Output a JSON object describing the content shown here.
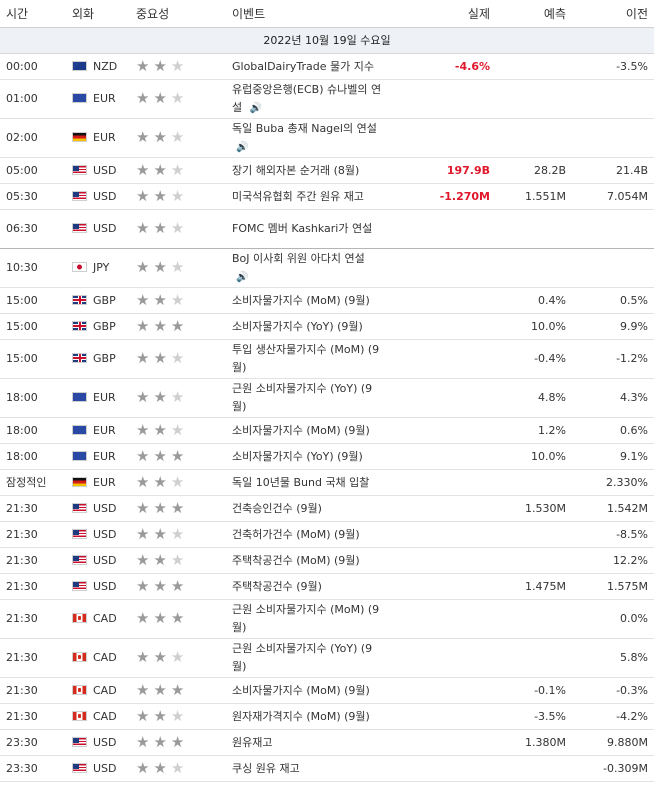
{
  "header": {
    "time": "시간",
    "currency": "외화",
    "importance": "중요성",
    "event": "이벤트",
    "actual": "실제",
    "forecast": "예측",
    "previous": "이전"
  },
  "date_label": "2022년 10월 19일 수요일",
  "icons": {
    "speaker": "speaker-icon",
    "star": "star-icon"
  },
  "colors": {
    "negative": "#e0182b",
    "star_on": "#9a9a9a",
    "star_off": "#cfcfcf"
  },
  "rows": [
    {
      "time": "00:00",
      "flag": "nz",
      "cur": "NZD",
      "stars": 2,
      "event": "GlobalDairyTrade 물가 지수",
      "event2": "",
      "speaker": false,
      "actual": "-4.6%",
      "actual_color": "neg",
      "forecast": "",
      "previous": "-3.5%",
      "tall": false,
      "sep": false
    },
    {
      "time": "01:00",
      "flag": "eu",
      "cur": "EUR",
      "stars": 2,
      "event": "유럽중앙은행(ECB) 슈나벨의 연",
      "event2": "설",
      "speaker": true,
      "actual": "",
      "actual_color": "",
      "forecast": "",
      "previous": "",
      "tall": true,
      "sep": false
    },
    {
      "time": "02:00",
      "flag": "de",
      "cur": "EUR",
      "stars": 2,
      "event": "독일 Buba 총재 Nagel의 연설",
      "event2": "",
      "speaker": true,
      "actual": "",
      "actual_color": "",
      "forecast": "",
      "previous": "",
      "tall": true,
      "sep": false
    },
    {
      "time": "05:00",
      "flag": "us",
      "cur": "USD",
      "stars": 2,
      "event": "장기 해외자본 순거래 (8월)",
      "event2": "",
      "speaker": false,
      "actual": "197.9B",
      "actual_color": "neg",
      "forecast": "28.2B",
      "previous": "21.4B",
      "tall": false,
      "sep": false
    },
    {
      "time": "05:30",
      "flag": "us",
      "cur": "USD",
      "stars": 2,
      "event": "미국석유협회 주간 원유 재고",
      "event2": "",
      "speaker": false,
      "actual": "-1.270M",
      "actual_color": "neg",
      "forecast": "1.551M",
      "previous": "7.054M",
      "tall": false,
      "sep": false
    },
    {
      "time": "06:30",
      "flag": "us",
      "cur": "USD",
      "stars": 2,
      "event": "FOMC 멤버 Kashkari가 연설",
      "event2": "",
      "speaker": false,
      "actual": "",
      "actual_color": "",
      "forecast": "",
      "previous": "",
      "tall": true,
      "sep": true
    },
    {
      "time": "10:30",
      "flag": "jp",
      "cur": "JPY",
      "stars": 2,
      "event": "BoJ 이사회 위원 아다치 연설",
      "event2": "",
      "speaker": true,
      "actual": "",
      "actual_color": "",
      "forecast": "",
      "previous": "",
      "tall": true,
      "sep": false
    },
    {
      "time": "15:00",
      "flag": "gb",
      "cur": "GBP",
      "stars": 2,
      "event": "소비자물가지수 (MoM) (9월)",
      "event2": "",
      "speaker": false,
      "actual": "",
      "actual_color": "",
      "forecast": "0.4%",
      "previous": "0.5%",
      "tall": false,
      "sep": false
    },
    {
      "time": "15:00",
      "flag": "gb",
      "cur": "GBP",
      "stars": 3,
      "event": "소비자물가지수 (YoY) (9월)",
      "event2": "",
      "speaker": false,
      "actual": "",
      "actual_color": "",
      "forecast": "10.0%",
      "previous": "9.9%",
      "tall": false,
      "sep": false
    },
    {
      "time": "15:00",
      "flag": "gb",
      "cur": "GBP",
      "stars": 2,
      "event": "투입 생산자물가지수 (MoM) (9",
      "event2": "월)",
      "speaker": false,
      "actual": "",
      "actual_color": "",
      "forecast": "-0.4%",
      "previous": "-1.2%",
      "tall": true,
      "sep": false
    },
    {
      "time": "18:00",
      "flag": "eu",
      "cur": "EUR",
      "stars": 2,
      "event": "근원 소비자물가지수 (YoY) (9",
      "event2": "월)",
      "speaker": false,
      "actual": "",
      "actual_color": "",
      "forecast": "4.8%",
      "previous": "4.3%",
      "tall": true,
      "sep": false
    },
    {
      "time": "18:00",
      "flag": "eu",
      "cur": "EUR",
      "stars": 2,
      "event": "소비자물가지수 (MoM) (9월)",
      "event2": "",
      "speaker": false,
      "actual": "",
      "actual_color": "",
      "forecast": "1.2%",
      "previous": "0.6%",
      "tall": false,
      "sep": false
    },
    {
      "time": "18:00",
      "flag": "eu",
      "cur": "EUR",
      "stars": 3,
      "event": "소비자물가지수 (YoY) (9월)",
      "event2": "",
      "speaker": false,
      "actual": "",
      "actual_color": "",
      "forecast": "10.0%",
      "previous": "9.1%",
      "tall": false,
      "sep": false
    },
    {
      "time": "잠정적인",
      "flag": "de",
      "cur": "EUR",
      "stars": 2,
      "event": "독일 10년물 Bund 국채 입찰",
      "event2": "",
      "speaker": false,
      "actual": "",
      "actual_color": "",
      "forecast": "",
      "previous": "2.330%",
      "tall": false,
      "sep": false
    },
    {
      "time": "21:30",
      "flag": "us",
      "cur": "USD",
      "stars": 3,
      "event": "건축승인건수 (9월)",
      "event2": "",
      "speaker": false,
      "actual": "",
      "actual_color": "",
      "forecast": "1.530M",
      "previous": "1.542M",
      "tall": false,
      "sep": false
    },
    {
      "time": "21:30",
      "flag": "us",
      "cur": "USD",
      "stars": 2,
      "event": "건축허가건수 (MoM) (9월)",
      "event2": "",
      "speaker": false,
      "actual": "",
      "actual_color": "",
      "forecast": "",
      "previous": "-8.5%",
      "tall": false,
      "sep": false
    },
    {
      "time": "21:30",
      "flag": "us",
      "cur": "USD",
      "stars": 2,
      "event": "주택착공건수 (MoM) (9월)",
      "event2": "",
      "speaker": false,
      "actual": "",
      "actual_color": "",
      "forecast": "",
      "previous": "12.2%",
      "tall": false,
      "sep": false
    },
    {
      "time": "21:30",
      "flag": "us",
      "cur": "USD",
      "stars": 3,
      "event": "주택착공건수 (9월)",
      "event2": "",
      "speaker": false,
      "actual": "",
      "actual_color": "",
      "forecast": "1.475M",
      "previous": "1.575M",
      "tall": false,
      "sep": false
    },
    {
      "time": "21:30",
      "flag": "ca",
      "cur": "CAD",
      "stars": 3,
      "event": "근원 소비자물가지수 (MoM) (9",
      "event2": "월)",
      "speaker": false,
      "actual": "",
      "actual_color": "",
      "forecast": "",
      "previous": "0.0%",
      "tall": true,
      "sep": false
    },
    {
      "time": "21:30",
      "flag": "ca",
      "cur": "CAD",
      "stars": 2,
      "event": "근원 소비자물가지수 (YoY) (9",
      "event2": "월)",
      "speaker": false,
      "actual": "",
      "actual_color": "",
      "forecast": "",
      "previous": "5.8%",
      "tall": true,
      "sep": false
    },
    {
      "time": "21:30",
      "flag": "ca",
      "cur": "CAD",
      "stars": 3,
      "event": "소비자물가지수 (MoM) (9월)",
      "event2": "",
      "speaker": false,
      "actual": "",
      "actual_color": "",
      "forecast": "-0.1%",
      "previous": "-0.3%",
      "tall": false,
      "sep": false
    },
    {
      "time": "21:30",
      "flag": "ca",
      "cur": "CAD",
      "stars": 2,
      "event": "원자재가격지수 (MoM) (9월)",
      "event2": "",
      "speaker": false,
      "actual": "",
      "actual_color": "",
      "forecast": "-3.5%",
      "previous": "-4.2%",
      "tall": false,
      "sep": false
    },
    {
      "time": "23:30",
      "flag": "us",
      "cur": "USD",
      "stars": 3,
      "event": "원유재고",
      "event2": "",
      "speaker": false,
      "actual": "",
      "actual_color": "",
      "forecast": "1.380M",
      "previous": "9.880M",
      "tall": false,
      "sep": false
    },
    {
      "time": "23:30",
      "flag": "us",
      "cur": "USD",
      "stars": 2,
      "event": "쿠싱 원유 재고",
      "event2": "",
      "speaker": false,
      "actual": "",
      "actual_color": "",
      "forecast": "",
      "previous": "-0.309M",
      "tall": false,
      "sep": false
    }
  ]
}
